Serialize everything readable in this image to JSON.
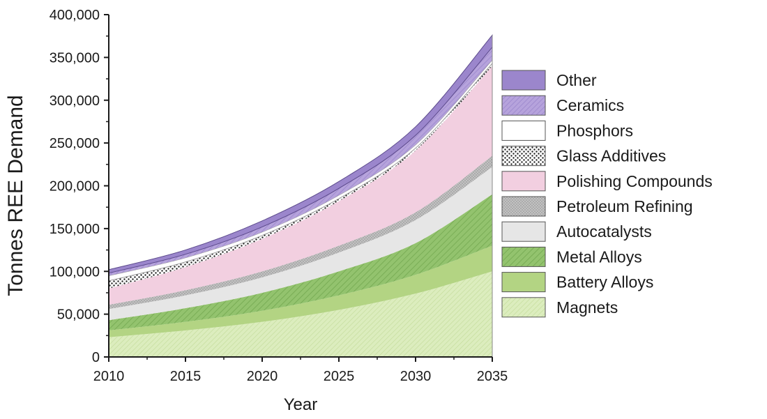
{
  "chart_data": {
    "type": "area",
    "stacked": true,
    "title": "",
    "xlabel": "Year",
    "ylabel": "Tonnes REE Demand",
    "x": [
      2010,
      2015,
      2020,
      2025,
      2030,
      2035
    ],
    "xlim": [
      2010,
      2035
    ],
    "ylim": [
      0,
      400000
    ],
    "x_ticks": [
      "2010",
      "2015",
      "2020",
      "2025",
      "2030",
      "2035"
    ],
    "y_ticks": [
      "0",
      "50,000",
      "100,000",
      "150,000",
      "200,000",
      "250,000",
      "300,000",
      "350,000",
      "400,000"
    ],
    "grid": false,
    "legend_position": "right",
    "series": [
      {
        "name": "Magnets",
        "color": "#d9ebb8",
        "pattern": "fine-hatch",
        "values": [
          23000,
          31000,
          41000,
          55000,
          74000,
          100000
        ]
      },
      {
        "name": "Battery Alloys",
        "color": "#b3d483",
        "pattern": "solid",
        "values": [
          8000,
          10000,
          13000,
          17000,
          22000,
          30000
        ]
      },
      {
        "name": "Metal Alloys",
        "color": "#8fc06a",
        "pattern": "diagonal-hatch",
        "values": [
          12000,
          16000,
          21000,
          28000,
          37000,
          60000
        ]
      },
      {
        "name": "Autocatalysts",
        "color": "#e6e6e6",
        "pattern": "solid",
        "values": [
          13000,
          15000,
          18000,
          22000,
          27000,
          32000
        ]
      },
      {
        "name": "Petroleum Refining",
        "color": "#b8b8b8",
        "pattern": "dots",
        "values": [
          5000,
          6000,
          7000,
          8000,
          9000,
          13000
        ]
      },
      {
        "name": "Polishing Compounds",
        "color": "#f2cfe0",
        "pattern": "solid",
        "values": [
          19000,
          27000,
          38000,
          52000,
          72000,
          105000
        ]
      },
      {
        "name": "Glass Additives",
        "color": "#ffffff",
        "pattern": "dense-dots",
        "values": [
          9000,
          6000,
          4000,
          3000,
          3000,
          3000
        ]
      },
      {
        "name": "Phosphors",
        "color": "#ffffff",
        "pattern": "solid",
        "values": [
          6000,
          5000,
          4000,
          4000,
          4000,
          4000
        ]
      },
      {
        "name": "Ceramics",
        "color": "#ad99d6",
        "pattern": "diagonal-hatch",
        "values": [
          3000,
          4000,
          6000,
          8000,
          11000,
          15000
        ]
      },
      {
        "name": "Other",
        "color": "#9b86cc",
        "pattern": "solid",
        "values": [
          4000,
          5000,
          7000,
          8000,
          10000,
          14000
        ]
      }
    ],
    "legend_order": [
      "Other",
      "Ceramics",
      "Phosphors",
      "Glass Additives",
      "Polishing Compounds",
      "Petroleum Refining",
      "Autocatalysts",
      "Metal Alloys",
      "Battery Alloys",
      "Magnets"
    ]
  }
}
